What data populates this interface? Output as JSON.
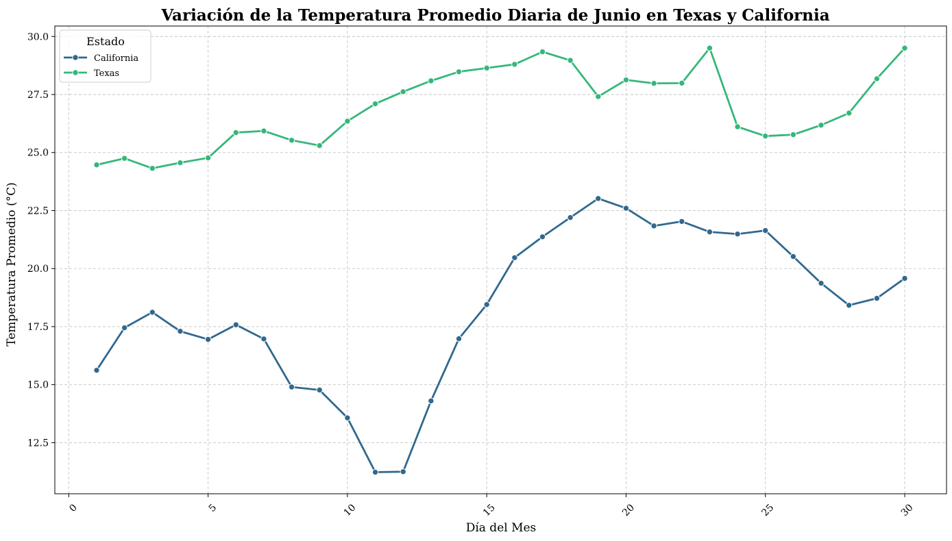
{
  "chart_data": {
    "type": "line",
    "title": "Variación de la Temperatura Promedio Diaria de Junio en Texas y California",
    "xlabel": "Día del Mes",
    "ylabel": "Temperatura Promedio (°C)",
    "xlim": [
      -0.5,
      31.5
    ],
    "ylim": [
      10.3,
      30.45
    ],
    "xticks": [
      0,
      5,
      10,
      15,
      20,
      25,
      30
    ],
    "yticks": [
      12.5,
      15.0,
      17.5,
      20.0,
      22.5,
      25.0,
      27.5,
      30.0
    ],
    "xtick_labels": [
      "0",
      "5",
      "10",
      "15",
      "20",
      "25",
      "30"
    ],
    "ytick_labels": [
      "12.5",
      "15.0",
      "17.5",
      "20.0",
      "22.5",
      "25.0",
      "27.5",
      "30.0"
    ],
    "grid": true,
    "legend": {
      "title": "Estado",
      "position": "top-left"
    },
    "x": [
      1,
      2,
      3,
      4,
      5,
      6,
      7,
      8,
      9,
      10,
      11,
      12,
      13,
      14,
      15,
      16,
      17,
      18,
      19,
      20,
      21,
      22,
      23,
      24,
      25,
      26,
      27,
      28,
      29,
      30
    ],
    "series": [
      {
        "name": "California",
        "color": "#31688e",
        "values": [
          15.62,
          17.45,
          18.12,
          17.3,
          16.95,
          17.58,
          16.97,
          14.9,
          14.77,
          13.57,
          11.23,
          11.25,
          14.3,
          16.98,
          18.45,
          20.47,
          21.37,
          22.2,
          23.02,
          22.6,
          21.84,
          22.03,
          21.58,
          21.49,
          21.64,
          20.52,
          19.37,
          18.42,
          18.72,
          19.58
        ]
      },
      {
        "name": "Texas",
        "color": "#35b779",
        "values": [
          24.47,
          24.75,
          24.32,
          24.56,
          24.77,
          25.86,
          25.93,
          25.53,
          25.3,
          26.35,
          27.1,
          27.62,
          28.09,
          28.48,
          28.64,
          28.8,
          29.34,
          28.97,
          27.41,
          28.13,
          27.98,
          27.99,
          29.5,
          26.11,
          25.71,
          25.77,
          26.18,
          26.7,
          28.18,
          29.5
        ]
      }
    ]
  }
}
